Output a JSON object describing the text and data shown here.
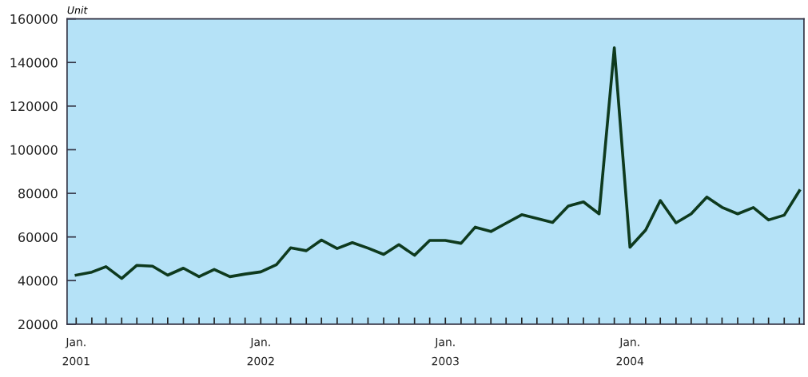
{
  "chart_data": {
    "type": "line",
    "ylabel": "Unit",
    "x": [
      "2001-01",
      "2001-02",
      "2001-03",
      "2001-04",
      "2001-05",
      "2001-06",
      "2001-07",
      "2001-08",
      "2001-09",
      "2001-10",
      "2001-11",
      "2001-12",
      "2002-01",
      "2002-02",
      "2002-03",
      "2002-04",
      "2002-05",
      "2002-06",
      "2002-07",
      "2002-08",
      "2002-09",
      "2002-10",
      "2002-11",
      "2002-12",
      "2003-01",
      "2003-02",
      "2003-03",
      "2003-04",
      "2003-05",
      "2003-06",
      "2003-07",
      "2003-08",
      "2003-09",
      "2003-10",
      "2003-11",
      "2003-12",
      "2004-01",
      "2004-02",
      "2004-03",
      "2004-04",
      "2004-05",
      "2004-06",
      "2004-07",
      "2004-08",
      "2004-09",
      "2004-10",
      "2004-11",
      "2004-12"
    ],
    "series": [
      {
        "color": "#0e3a1e",
        "values": [
          42500,
          43900,
          46400,
          41000,
          47000,
          46600,
          42500,
          45700,
          41800,
          45100,
          41800,
          43000,
          44000,
          47300,
          55000,
          53700,
          58600,
          54700,
          57400,
          54900,
          52000,
          56500,
          51600,
          58400,
          58400,
          57100,
          64500,
          62500,
          66300,
          70200,
          68500,
          66700,
          74200,
          76100,
          70600,
          146700,
          55300,
          63200,
          76700,
          66500,
          70600,
          78300,
          73600,
          70600,
          73500,
          67800,
          70000,
          81200
        ]
      }
    ],
    "xlim": [
      "2000-12-14",
      "2004-12-10"
    ],
    "xticks": [
      {
        "value": "2001-01",
        "label": "Jan.\n2001"
      },
      {
        "value": "2001-02",
        "label": null
      },
      {
        "value": "2001-03",
        "label": null
      },
      {
        "value": "2001-04",
        "label": null
      },
      {
        "value": "2001-05",
        "label": null
      },
      {
        "value": "2001-06",
        "label": null
      },
      {
        "value": "2001-07",
        "label": null
      },
      {
        "value": "2001-08",
        "label": null
      },
      {
        "value": "2001-09",
        "label": null
      },
      {
        "value": "2001-10",
        "label": null
      },
      {
        "value": "2001-11",
        "label": null
      },
      {
        "value": "2001-12",
        "label": null
      },
      {
        "value": "2002-01",
        "label": "Jan.\n2002"
      },
      {
        "value": "2002-02",
        "label": null
      },
      {
        "value": "2002-03",
        "label": null
      },
      {
        "value": "2002-04",
        "label": null
      },
      {
        "value": "2002-05",
        "label": null
      },
      {
        "value": "2002-06",
        "label": null
      },
      {
        "value": "2002-07",
        "label": null
      },
      {
        "value": "2002-08",
        "label": null
      },
      {
        "value": "2002-09",
        "label": null
      },
      {
        "value": "2002-10",
        "label": null
      },
      {
        "value": "2002-11",
        "label": null
      },
      {
        "value": "2002-12",
        "label": null
      },
      {
        "value": "2003-01",
        "label": "Jan.\n2003"
      },
      {
        "value": "2003-02",
        "label": null
      },
      {
        "value": "2003-03",
        "label": null
      },
      {
        "value": "2003-04",
        "label": null
      },
      {
        "value": "2003-05",
        "label": null
      },
      {
        "value": "2003-06",
        "label": null
      },
      {
        "value": "2003-07",
        "label": null
      },
      {
        "value": "2003-08",
        "label": null
      },
      {
        "value": "2003-09",
        "label": null
      },
      {
        "value": "2003-10",
        "label": null
      },
      {
        "value": "2003-11",
        "label": null
      },
      {
        "value": "2003-12",
        "label": null
      },
      {
        "value": "2004-01",
        "label": "Jan.\n2004"
      },
      {
        "value": "2004-02",
        "label": null
      },
      {
        "value": "2004-03",
        "label": null
      },
      {
        "value": "2004-04",
        "label": null
      },
      {
        "value": "2004-05",
        "label": null
      },
      {
        "value": "2004-06",
        "label": null
      },
      {
        "value": "2004-07",
        "label": null
      },
      {
        "value": "2004-08",
        "label": null
      },
      {
        "value": "2004-09",
        "label": null
      },
      {
        "value": "2004-10",
        "label": null
      },
      {
        "value": "2004-11",
        "label": null
      },
      {
        "value": "2004-12",
        "label": null
      }
    ],
    "ylim": [
      20000,
      160000
    ],
    "yticks": [
      20000,
      40000,
      60000,
      80000,
      100000,
      120000,
      140000,
      160000
    ],
    "grid": false
  }
}
